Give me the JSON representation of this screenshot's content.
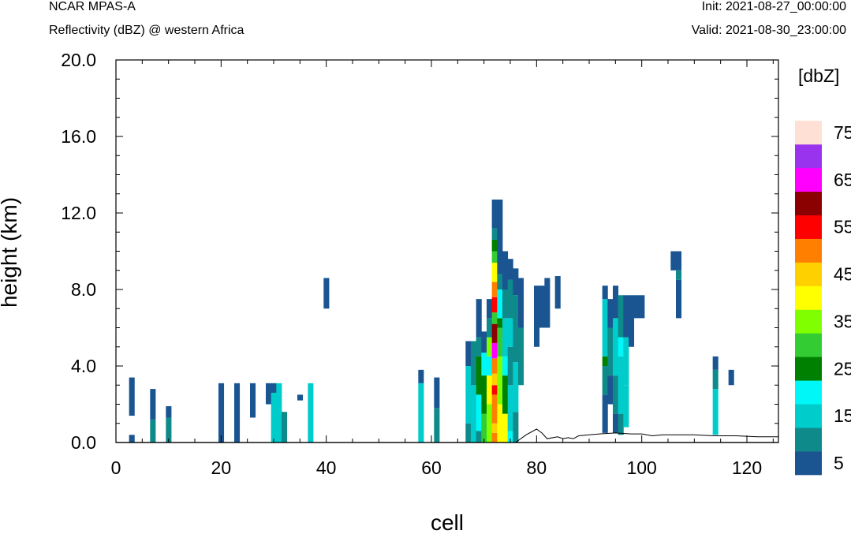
{
  "header": {
    "model": "NCAR MPAS-A",
    "field_title": "Reflectivity (dBZ) @ western Africa",
    "init": "Init: 2021-08-27_00:00:00",
    "valid": "Valid: 2021-08-30_23:00:00"
  },
  "chart_data": {
    "type": "heatmap",
    "title": "Reflectivity (dBZ) @ western Africa",
    "xlabel": "cell",
    "ylabel": "height (km)",
    "xlim": [
      0,
      126
    ],
    "ylim": [
      0,
      20
    ],
    "x_ticks": [
      0,
      20,
      40,
      60,
      80,
      100,
      120
    ],
    "y_ticks": [
      "0.0",
      "4.0",
      "8.0",
      "12.0",
      "16.0",
      "20.0"
    ],
    "grid": false,
    "colorbar": {
      "title": "[dbZ]",
      "levels": [
        5,
        10,
        15,
        20,
        25,
        30,
        35,
        40,
        45,
        50,
        55,
        60,
        65,
        70,
        75
      ],
      "tick_labels": [
        "5",
        "15",
        "25",
        "35",
        "45",
        "55",
        "65",
        "75"
      ],
      "colors": [
        "#1a5591",
        "#0f8a8a",
        "#00cccc",
        "#00f7f7",
        "#008000",
        "#33cc33",
        "#80ff00",
        "#ffff00",
        "#ffd000",
        "#ff8000",
        "#ff0000",
        "#8b0000",
        "#ff00ff",
        "#9933ee",
        "#ffe0d4"
      ]
    },
    "cells": [
      [
        3,
        0,
        0.4,
        5
      ],
      [
        3,
        1.4,
        3.4,
        5
      ],
      [
        7,
        0,
        1.2,
        10
      ],
      [
        7,
        1.2,
        2.8,
        5
      ],
      [
        10,
        0,
        1.3,
        10
      ],
      [
        10,
        1.3,
        1.9,
        5
      ],
      [
        20,
        0,
        3.1,
        5
      ],
      [
        23,
        0,
        3.1,
        5
      ],
      [
        26,
        1.3,
        3.1,
        5
      ],
      [
        29,
        2,
        3.1,
        5
      ],
      [
        30,
        0,
        2.6,
        15
      ],
      [
        30,
        2.6,
        3.1,
        5
      ],
      [
        31,
        0,
        3.1,
        15
      ],
      [
        32,
        0,
        1.6,
        10
      ],
      [
        35,
        2.2,
        2.5,
        5
      ],
      [
        37,
        0,
        3.1,
        15
      ],
      [
        40,
        7.0,
        8.6,
        5
      ],
      [
        58,
        0,
        3.1,
        15
      ],
      [
        58,
        3.1,
        3.8,
        5
      ],
      [
        61,
        0,
        1.8,
        10
      ],
      [
        61,
        1.8,
        3.4,
        5
      ],
      [
        67,
        0,
        1.0,
        10
      ],
      [
        67,
        1.0,
        4.0,
        15
      ],
      [
        67,
        4.0,
        5.3,
        5
      ],
      [
        68,
        0,
        3.0,
        15
      ],
      [
        68,
        3.0,
        5.3,
        10
      ],
      [
        69,
        0,
        0.6,
        10
      ],
      [
        69,
        0.6,
        2.5,
        20
      ],
      [
        69,
        2.5,
        4.5,
        25
      ],
      [
        69,
        4.5,
        5.5,
        10
      ],
      [
        69,
        5.5,
        7.5,
        5
      ],
      [
        70,
        0,
        1.5,
        30
      ],
      [
        70,
        1.5,
        3.5,
        25
      ],
      [
        70,
        3.5,
        4.7,
        20
      ],
      [
        70,
        4.7,
        5.8,
        5
      ],
      [
        71,
        0,
        2.0,
        35
      ],
      [
        71,
        2.0,
        3.5,
        40
      ],
      [
        71,
        3.5,
        4.5,
        20
      ],
      [
        71,
        4.5,
        5.5,
        35
      ],
      [
        71,
        5.5,
        6.5,
        10
      ],
      [
        71,
        6.5,
        7.5,
        5
      ],
      [
        72,
        0,
        0.5,
        50
      ],
      [
        72,
        0.5,
        1.0,
        45
      ],
      [
        72,
        1.0,
        2.5,
        50
      ],
      [
        72,
        2.5,
        3.0,
        55
      ],
      [
        72,
        3.0,
        3.6,
        45
      ],
      [
        72,
        3.6,
        4.4,
        50
      ],
      [
        72,
        4.4,
        5.2,
        65
      ],
      [
        72,
        5.2,
        6.2,
        60
      ],
      [
        72,
        6.2,
        6.8,
        30
      ],
      [
        72,
        6.8,
        7.6,
        55
      ],
      [
        72,
        7.6,
        8.4,
        50
      ],
      [
        72,
        8.4,
        9.4,
        40
      ],
      [
        72,
        9.4,
        10.0,
        30
      ],
      [
        72,
        10.0,
        10.6,
        25
      ],
      [
        72,
        10.6,
        11.2,
        10
      ],
      [
        72,
        11.2,
        12.7,
        5
      ],
      [
        73,
        0,
        2.0,
        40
      ],
      [
        73,
        2.0,
        4.5,
        35
      ],
      [
        73,
        4.5,
        6.0,
        30
      ],
      [
        73,
        6.0,
        6.5,
        25
      ],
      [
        73,
        6.5,
        8.0,
        20
      ],
      [
        73,
        8.0,
        8.8,
        10
      ],
      [
        73,
        8.8,
        12.7,
        5
      ],
      [
        74,
        0,
        1.5,
        40
      ],
      [
        74,
        1.5,
        3.5,
        25
      ],
      [
        74,
        3.5,
        4.5,
        20
      ],
      [
        74,
        4.5,
        6.5,
        15
      ],
      [
        74,
        6.5,
        8.0,
        10
      ],
      [
        74,
        8.0,
        10.0,
        5
      ],
      [
        75,
        0,
        0.6,
        20
      ],
      [
        75,
        0.6,
        3.0,
        15
      ],
      [
        75,
        3.0,
        5.0,
        10
      ],
      [
        75,
        5.0,
        6.5,
        15
      ],
      [
        75,
        6.5,
        8.5,
        10
      ],
      [
        75,
        8.5,
        9.6,
        5
      ],
      [
        76,
        0,
        1.6,
        10
      ],
      [
        76,
        1.6,
        4.2,
        15
      ],
      [
        76,
        4.2,
        7.7,
        10
      ],
      [
        76,
        7.7,
        9.1,
        5
      ],
      [
        77,
        3.0,
        6.0,
        10
      ],
      [
        77,
        6.0,
        8.6,
        5
      ],
      [
        80,
        5.0,
        8.2,
        5
      ],
      [
        81,
        6.0,
        8.2,
        5
      ],
      [
        82,
        6.0,
        8.6,
        5
      ],
      [
        84,
        7.0,
        8.7,
        5
      ],
      [
        93,
        0.5,
        2.5,
        5
      ],
      [
        93,
        2.5,
        4.0,
        10
      ],
      [
        93,
        4.0,
        4.5,
        25
      ],
      [
        93,
        4.5,
        7.5,
        15
      ],
      [
        93,
        7.5,
        8.2,
        5
      ],
      [
        94,
        2.0,
        3.5,
        5
      ],
      [
        94,
        3.5,
        6.0,
        10
      ],
      [
        94,
        6.0,
        7.5,
        5
      ],
      [
        95,
        0.5,
        1.5,
        5
      ],
      [
        95,
        1.5,
        3.5,
        10
      ],
      [
        95,
        3.5,
        6.5,
        15
      ],
      [
        95,
        6.5,
        8.2,
        5
      ],
      [
        96,
        0.4,
        1.5,
        10
      ],
      [
        96,
        1.5,
        4.5,
        15
      ],
      [
        96,
        4.5,
        5.5,
        20
      ],
      [
        96,
        5.5,
        7.7,
        10
      ],
      [
        97,
        0.8,
        3.0,
        15
      ],
      [
        97,
        3.0,
        5.5,
        15
      ],
      [
        97,
        5.5,
        7.7,
        5
      ],
      [
        98,
        5.0,
        7.7,
        5
      ],
      [
        99,
        6.5,
        7.7,
        5
      ],
      [
        100,
        6.5,
        7.7,
        5
      ],
      [
        106,
        9.0,
        10.0,
        5
      ],
      [
        107,
        6.5,
        8.5,
        5
      ],
      [
        107,
        8.5,
        9.0,
        10
      ],
      [
        107,
        9.0,
        10.0,
        5
      ],
      [
        114,
        0.4,
        2.8,
        15
      ],
      [
        114,
        2.8,
        3.8,
        10
      ],
      [
        114,
        3.8,
        4.5,
        5
      ],
      [
        117,
        3.0,
        3.8,
        5
      ]
    ],
    "terrain": [
      [
        76,
        0
      ],
      [
        78,
        0.4
      ],
      [
        80,
        0.7
      ],
      [
        81,
        0.5
      ],
      [
        82,
        0.2
      ],
      [
        84,
        0.3
      ],
      [
        85,
        0.2
      ],
      [
        86,
        0.25
      ],
      [
        87,
        0.2
      ],
      [
        88,
        0.35
      ],
      [
        90,
        0.4
      ],
      [
        92,
        0.45
      ],
      [
        95,
        0.5
      ],
      [
        98,
        0.45
      ],
      [
        100,
        0.45
      ],
      [
        102,
        0.35
      ],
      [
        104,
        0.4
      ],
      [
        108,
        0.4
      ],
      [
        110,
        0.4
      ],
      [
        114,
        0.35
      ],
      [
        118,
        0.35
      ],
      [
        122,
        0.3
      ],
      [
        126,
        0.3
      ]
    ]
  }
}
